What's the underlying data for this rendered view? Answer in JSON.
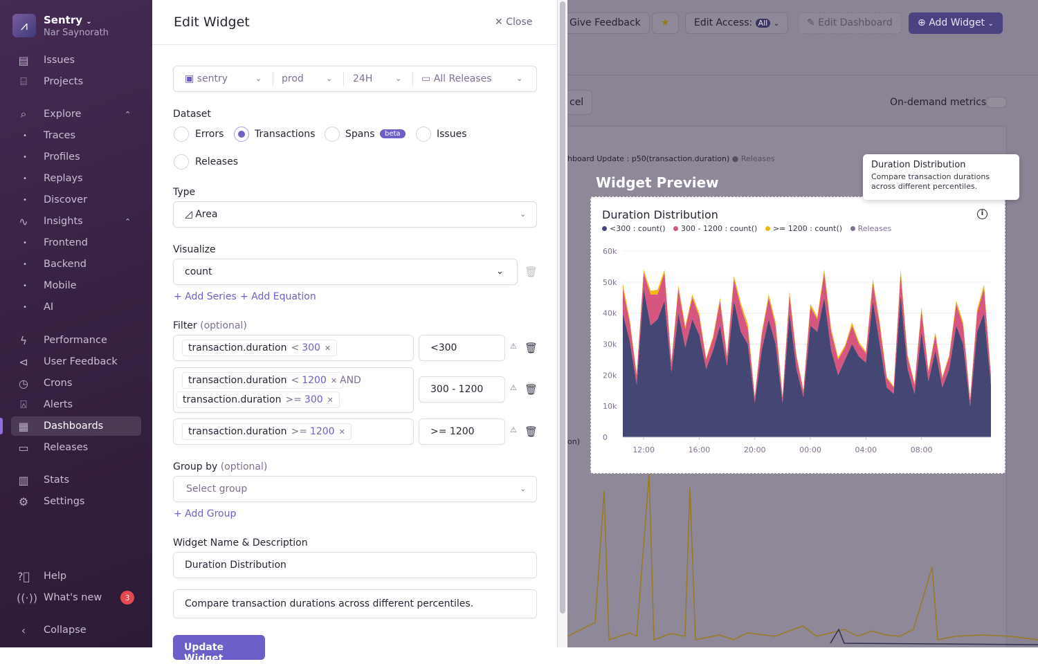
{
  "sidebar": {
    "org": "Sentry",
    "user": "Nar Saynorath",
    "items": [
      {
        "label": "Issues",
        "icon": "inbox-icon"
      },
      {
        "label": "Projects",
        "icon": "folder-code-icon"
      },
      {
        "label": "Explore",
        "icon": "search-icon"
      },
      {
        "label": "Traces"
      },
      {
        "label": "Profiles"
      },
      {
        "label": "Replays"
      },
      {
        "label": "Discover"
      },
      {
        "label": "Insights",
        "icon": "graph-icon"
      },
      {
        "label": "Frontend"
      },
      {
        "label": "Backend"
      },
      {
        "label": "Mobile"
      },
      {
        "label": "AI"
      },
      {
        "label": "Performance",
        "icon": "lightning-icon"
      },
      {
        "label": "User Feedback",
        "icon": "megaphone-icon"
      },
      {
        "label": "Crons",
        "icon": "clock-icon"
      },
      {
        "label": "Alerts",
        "icon": "siren-icon"
      },
      {
        "label": "Dashboards",
        "icon": "dashboard-icon"
      },
      {
        "label": "Releases",
        "icon": "releases-icon"
      },
      {
        "label": "Stats",
        "icon": "stats-icon"
      },
      {
        "label": "Settings",
        "icon": "gear-icon"
      },
      {
        "label": "Help",
        "icon": "question-icon"
      },
      {
        "label": "What's new",
        "icon": "broadcast-icon",
        "badge": "3"
      },
      {
        "label": "Collapse",
        "icon": "chevron-left-icon"
      }
    ]
  },
  "panel": {
    "title": "Edit Widget",
    "close": "Close",
    "filters": {
      "project": "sentry",
      "env": "prod",
      "period": "24H",
      "releases": "All Releases"
    },
    "dataset": {
      "label": "Dataset",
      "options": [
        "Errors",
        "Transactions",
        "Spans",
        "Issues",
        "Releases"
      ],
      "selected": "Transactions",
      "beta": "beta"
    },
    "type": {
      "label": "Type",
      "value": "Area"
    },
    "visualize": {
      "label": "Visualize",
      "value": "count",
      "add_series": "+ Add Series",
      "add_equation": "+ Add Equation"
    },
    "filter": {
      "label": "Filter",
      "optional": "(optional)",
      "rows": [
        {
          "tokens": [
            {
              "key": "transaction.duration",
              "op": "<",
              "val": "300"
            }
          ],
          "alias": "<300"
        },
        {
          "tokens": [
            {
              "key": "transaction.duration",
              "op": "<",
              "val": "1200"
            },
            {
              "key": "transaction.duration",
              "op": ">=",
              "val": "300"
            }
          ],
          "joiner": "AND",
          "alias": "300 - 1200"
        },
        {
          "tokens": [
            {
              "key": "transaction.duration",
              "op": ">=",
              "val": "1200"
            }
          ],
          "alias": ">= 1200"
        }
      ]
    },
    "groupby": {
      "label": "Group by",
      "optional": "(optional)",
      "placeholder": "Select group",
      "add": "+ Add Group"
    },
    "name": {
      "label": "Widget Name & Description",
      "value": "Duration Distribution",
      "description": "Compare transaction durations across different percentiles."
    },
    "submit": "Update Widget"
  },
  "header": {
    "give_feedback": "Give Feedback",
    "edit_access": "Edit Access:",
    "access_badge": "All",
    "edit_dashboard": "Edit Dashboard",
    "add_widget": "Add Widget",
    "cancel": "cel",
    "on_demand": "On-demand metrics",
    "bg_legend": "hboard Update : p50(transaction.duration)",
    "bg_releases": "Releases",
    "bg_frag": "on)"
  },
  "preview": {
    "heading": "Widget Preview",
    "title": "Duration Distribution",
    "tooltip_title": "Duration Distribution",
    "tooltip_body": "Compare transaction durations across different percentiles."
  },
  "colors": {
    "accent": "#6c5fc7",
    "s1": "#444674",
    "s2": "#d6567f",
    "s3": "#f2b712",
    "releases": "#80708f"
  },
  "chart_data": {
    "type": "area",
    "stacked": true,
    "legend_placement": "top-left",
    "legend": [
      "<300 : count()",
      "300 - 1200 : count()",
      ">= 1200 : count()",
      "Releases"
    ],
    "yticks": [
      "0",
      "10k",
      "20k",
      "30k",
      "40k",
      "50k",
      "60k"
    ],
    "ylim": [
      0,
      60000
    ],
    "xticks": [
      "12:00",
      "16:00",
      "20:00",
      "00:00",
      "04:00",
      "08:00"
    ],
    "x": [
      "10:30",
      "11:00",
      "11:30",
      "12:00",
      "12:30",
      "13:00",
      "13:30",
      "14:00",
      "14:30",
      "15:00",
      "15:30",
      "16:00",
      "16:30",
      "17:00",
      "17:30",
      "18:00",
      "18:30",
      "19:00",
      "19:30",
      "20:00",
      "20:30",
      "21:00",
      "21:30",
      "22:00",
      "22:30",
      "23:00",
      "23:30",
      "00:00",
      "00:30",
      "01:00",
      "01:30",
      "02:00",
      "02:30",
      "03:00",
      "03:30",
      "04:00",
      "04:30",
      "05:00",
      "05:30",
      "06:00",
      "06:30",
      "07:00",
      "07:30",
      "08:00",
      "08:30",
      "09:00",
      "09:30",
      "10:00",
      "10:30",
      "11:00",
      "11:30",
      "12:00",
      "12:30",
      "13:00"
    ],
    "series": [
      {
        "name": "<300 : count()",
        "values": [
          40000,
          31000,
          17000,
          48000,
          36000,
          38000,
          44000,
          21000,
          40000,
          29000,
          38000,
          33000,
          22000,
          28000,
          36000,
          23000,
          44000,
          34000,
          30000,
          11000,
          28000,
          38000,
          30000,
          11000,
          40000,
          22000,
          13000,
          36000,
          34000,
          45000,
          28000,
          20000,
          25000,
          30000,
          26000,
          24000,
          44000,
          30000,
          16000,
          14000,
          46000,
          22000,
          14000,
          34000,
          18000,
          28000,
          16000,
          22000,
          36000,
          30000,
          10000,
          34000,
          40000,
          17000
        ]
      },
      {
        "name": "300 - 1200 : count()",
        "values": [
          8000,
          6000,
          3000,
          5000,
          10000,
          8000,
          9000,
          3000,
          8000,
          6000,
          7000,
          6000,
          3000,
          4000,
          8000,
          3000,
          7000,
          8000,
          5000,
          2000,
          5000,
          7000,
          6000,
          2000,
          6000,
          4000,
          2000,
          6000,
          4000,
          8000,
          6000,
          5000,
          4000,
          6000,
          4000,
          3000,
          6000,
          6000,
          3000,
          2000,
          7000,
          4000,
          3000,
          7000,
          3000,
          5000,
          3000,
          4000,
          7000,
          6000,
          2000,
          6000,
          8000,
          3000
        ]
      },
      {
        "name": ">= 1200 : count()",
        "values": [
          1500,
          1000,
          500,
          1000,
          1200,
          1500,
          1000,
          500,
          1000,
          800,
          1000,
          1000,
          500,
          600,
          1000,
          500,
          1000,
          1200,
          1500,
          300,
          800,
          1000,
          1200,
          400,
          1000,
          600,
          400,
          1000,
          800,
          1200,
          1000,
          800,
          600,
          1000,
          700,
          600,
          1000,
          1000,
          500,
          400,
          1200,
          600,
          400,
          1000,
          500,
          800,
          400,
          600,
          1000,
          1000,
          300,
          1000,
          1200,
          500
        ]
      }
    ]
  }
}
